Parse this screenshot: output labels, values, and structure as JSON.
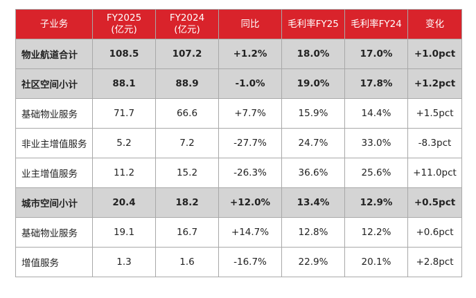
{
  "header": [
    "子业务",
    "FY2025\n(亿元)",
    "FY2024\n(亿元)",
    "同比",
    "毛利率FY25",
    "毛利率FY24",
    "变化"
  ],
  "rows": [
    {
      "kind": "subtotal",
      "cells": [
        "物业航道合计",
        "108.5",
        "107.2",
        "+1.2%",
        "18.0%",
        "17.0%",
        "+1.0pct"
      ]
    },
    {
      "kind": "subtotal",
      "cells": [
        "社区空间小计",
        "88.1",
        "88.9",
        "-1.0%",
        "19.0%",
        "17.8%",
        "+1.2pct"
      ]
    },
    {
      "kind": "detail",
      "cells": [
        "基础物业服务",
        "71.7",
        "66.6",
        "+7.7%",
        "15.9%",
        "14.4%",
        "+1.5pct"
      ]
    },
    {
      "kind": "detail",
      "cells": [
        "非业主增值服务",
        "5.2",
        "7.2",
        "-27.7%",
        "24.7%",
        "33.0%",
        "-8.3pct"
      ]
    },
    {
      "kind": "detail",
      "cells": [
        "业主增值服务",
        "11.2",
        "15.2",
        "-26.3%",
        "36.6%",
        "25.6%",
        "+11.0pct"
      ]
    },
    {
      "kind": "subtotal",
      "cells": [
        "城市空间小计",
        "20.4",
        "18.2",
        "+12.0%",
        "13.4%",
        "12.9%",
        "+0.5pct"
      ]
    },
    {
      "kind": "detail",
      "cells": [
        "基础物业服务",
        "19.1",
        "16.7",
        "+14.7%",
        "12.8%",
        "12.2%",
        "+0.6pct"
      ]
    },
    {
      "kind": "detail",
      "cells": [
        "增值服务",
        "1.3",
        "1.6",
        "-16.7%",
        "22.9%",
        "20.1%",
        "+2.8pct"
      ]
    }
  ]
}
